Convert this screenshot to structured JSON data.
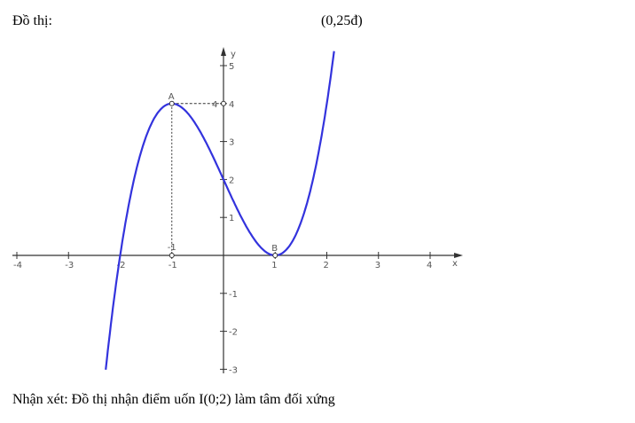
{
  "heading": {
    "label": "Đồ thị:",
    "points": "(0,25đ)"
  },
  "remark": "Nhận xét: Đồ thị nhận điểm uốn I(0;2) làm tâm đối xứng",
  "chart_data": {
    "type": "line",
    "title": "",
    "xlabel": "x",
    "ylabel": "y",
    "xlim": [
      -4,
      4
    ],
    "ylim": [
      -3,
      5
    ],
    "x_ticks": [
      "-4",
      "-3",
      "-2",
      "-1",
      "1",
      "2",
      "3",
      "4"
    ],
    "y_ticks": [
      "-3",
      "-2",
      "-1",
      "1",
      "2",
      "3",
      "4",
      "5"
    ],
    "grid": false,
    "curve_color": "#3333dd",
    "series": [
      {
        "x": [
          -2.28,
          -2.0,
          -1.75,
          -1.5,
          -1.25,
          -1.0,
          -0.75,
          -0.5,
          -0.25,
          0,
          0.25,
          0.5,
          0.75,
          1.0,
          1.25,
          1.5,
          1.75,
          2.0,
          2.15
        ],
        "y": [
          -3.0,
          0,
          1.89,
          3.13,
          3.8,
          4.0,
          3.83,
          3.38,
          2.73,
          2.0,
          1.27,
          0.63,
          0.17,
          0,
          0.2,
          0.88,
          2.11,
          4.0,
          5.49
        ]
      }
    ],
    "points": [
      {
        "label": "A",
        "x": -1,
        "y": 4
      },
      {
        "label": "B",
        "x": 1,
        "y": 0
      }
    ],
    "guide_labels": {
      "x_of_A": "-1",
      "y_of_A": "4"
    }
  }
}
